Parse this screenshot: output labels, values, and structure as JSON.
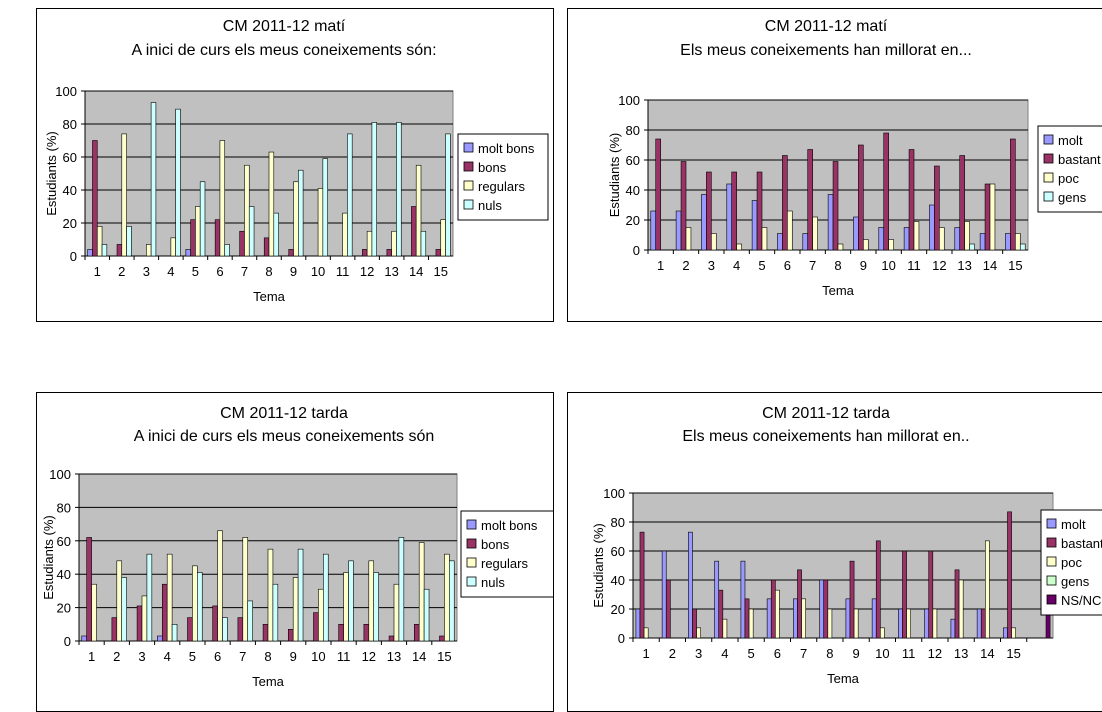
{
  "chart_data": [
    {
      "type": "bar",
      "title": "CM 2011-12 matí",
      "subtitle": "A inici de curs  els meus coneixements són:",
      "xlabel": "Tema",
      "ylabel": "Estudiants (%)",
      "ylim": [
        0,
        100
      ],
      "yticks": [
        0,
        20,
        40,
        60,
        80,
        100
      ],
      "grid": true,
      "legend_position": "right",
      "categories": [
        "1",
        "2",
        "3",
        "4",
        "5",
        "6",
        "7",
        "8",
        "9",
        "10",
        "11",
        "12",
        "13",
        "14",
        "15"
      ],
      "series": [
        {
          "name": "molt bons",
          "color": "#9999ff",
          "values": [
            4,
            0,
            0,
            0,
            4,
            0,
            0,
            0,
            0,
            0,
            0,
            0,
            0,
            0,
            0
          ]
        },
        {
          "name": "bons",
          "color": "#993366",
          "values": [
            70,
            7,
            0,
            0,
            22,
            22,
            15,
            11,
            4,
            0,
            0,
            4,
            4,
            30,
            4
          ]
        },
        {
          "name": "regulars",
          "color": "#ffffcc",
          "values": [
            18,
            74,
            7,
            11,
            30,
            70,
            55,
            63,
            45,
            41,
            26,
            15,
            15,
            55,
            22
          ]
        },
        {
          "name": "nuls",
          "color": "#ccffff",
          "values": [
            7,
            18,
            93,
            89,
            45,
            7,
            30,
            26,
            52,
            59,
            74,
            81,
            81,
            15,
            74
          ]
        }
      ]
    },
    {
      "type": "bar",
      "title": "CM 2011-12 matí",
      "subtitle": "Els meus coneixements han millorat en...",
      "xlabel": "Tema",
      "ylabel": "Estudiants (%)",
      "ylim": [
        0,
        100
      ],
      "yticks": [
        0,
        20,
        40,
        60,
        80,
        100
      ],
      "grid": true,
      "legend_position": "right",
      "categories": [
        "1",
        "2",
        "3",
        "4",
        "5",
        "6",
        "7",
        "8",
        "9",
        "10",
        "11",
        "12",
        "13",
        "14",
        "15"
      ],
      "series": [
        {
          "name": "molt",
          "color": "#9999ff",
          "values": [
            26,
            26,
            37,
            44,
            33,
            11,
            11,
            37,
            22,
            15,
            15,
            30,
            15,
            11,
            11
          ]
        },
        {
          "name": "bastant",
          "color": "#993366",
          "values": [
            74,
            59,
            52,
            52,
            52,
            63,
            67,
            59,
            70,
            78,
            67,
            56,
            63,
            44,
            74
          ]
        },
        {
          "name": "poc",
          "color": "#ffffcc",
          "values": [
            0,
            15,
            11,
            4,
            15,
            26,
            22,
            4,
            7,
            7,
            19,
            15,
            19,
            44,
            11
          ]
        },
        {
          "name": "gens",
          "color": "#ccffff",
          "values": [
            0,
            0,
            0,
            0,
            0,
            0,
            0,
            0,
            0,
            0,
            0,
            0,
            4,
            0,
            4
          ]
        }
      ]
    },
    {
      "type": "bar",
      "title": "CM 2011-12 tarda",
      "subtitle": "A inici de curs  els meus coneixements són",
      "xlabel": "Tema",
      "ylabel": "Estudiants (%)",
      "ylim": [
        0,
        100
      ],
      "yticks": [
        0,
        20,
        40,
        60,
        80,
        100
      ],
      "grid": true,
      "legend_position": "right",
      "categories": [
        "1",
        "2",
        "3",
        "4",
        "5",
        "6",
        "7",
        "8",
        "9",
        "10",
        "11",
        "12",
        "13",
        "14",
        "15"
      ],
      "series": [
        {
          "name": "molt bons",
          "color": "#9999ff",
          "values": [
            3,
            0,
            0,
            3,
            0,
            0,
            0,
            0,
            0,
            0,
            0,
            0,
            0,
            0,
            0
          ]
        },
        {
          "name": "bons",
          "color": "#993366",
          "values": [
            62,
            14,
            21,
            34,
            14,
            21,
            14,
            10,
            7,
            17,
            10,
            10,
            3,
            10,
            3
          ]
        },
        {
          "name": "regulars",
          "color": "#ffffcc",
          "values": [
            34,
            48,
            27,
            52,
            45,
            66,
            62,
            55,
            38,
            31,
            41,
            48,
            34,
            59,
            52
          ]
        },
        {
          "name": "nuls",
          "color": "#ccffff",
          "values": [
            0,
            38,
            52,
            10,
            41,
            14,
            24,
            34,
            55,
            52,
            48,
            41,
            62,
            31,
            48
          ]
        }
      ]
    },
    {
      "type": "bar",
      "title": "CM 2011-12  tarda",
      "subtitle": "Els meus coneixements han millorat en..",
      "xlabel": "Tema",
      "ylabel": "Estudiants (%)",
      "ylim": [
        0,
        100
      ],
      "yticks": [
        0,
        20,
        40,
        60,
        80,
        100
      ],
      "grid": true,
      "legend_position": "right",
      "categories": [
        "1",
        "2",
        "3",
        "4",
        "5",
        "6",
        "7",
        "8",
        "9",
        "10",
        "11",
        "12",
        "13",
        "14",
        "15",
        ""
      ],
      "series": [
        {
          "name": "molt",
          "color": "#9999ff",
          "values": [
            20,
            60,
            73,
            53,
            53,
            27,
            27,
            40,
            27,
            27,
            20,
            20,
            13,
            20,
            7,
            0
          ]
        },
        {
          "name": "bastant",
          "color": "#993366",
          "values": [
            73,
            40,
            20,
            33,
            27,
            40,
            47,
            40,
            53,
            67,
            60,
            60,
            47,
            20,
            87,
            0
          ]
        },
        {
          "name": "poc",
          "color": "#ffffcc",
          "values": [
            7,
            0,
            7,
            13,
            20,
            33,
            27,
            20,
            20,
            7,
            20,
            20,
            40,
            67,
            7,
            0
          ]
        },
        {
          "name": "gens",
          "color": "#ccffcc",
          "values": [
            0,
            0,
            0,
            0,
            0,
            0,
            0,
            0,
            0,
            0,
            0,
            0,
            0,
            0,
            0,
            0
          ]
        },
        {
          "name": "NS/NC",
          "color": "#660066",
          "values": [
            0,
            0,
            0,
            0,
            0,
            0,
            0,
            0,
            0,
            0,
            0,
            0,
            0,
            0,
            0,
            47
          ]
        }
      ]
    }
  ]
}
